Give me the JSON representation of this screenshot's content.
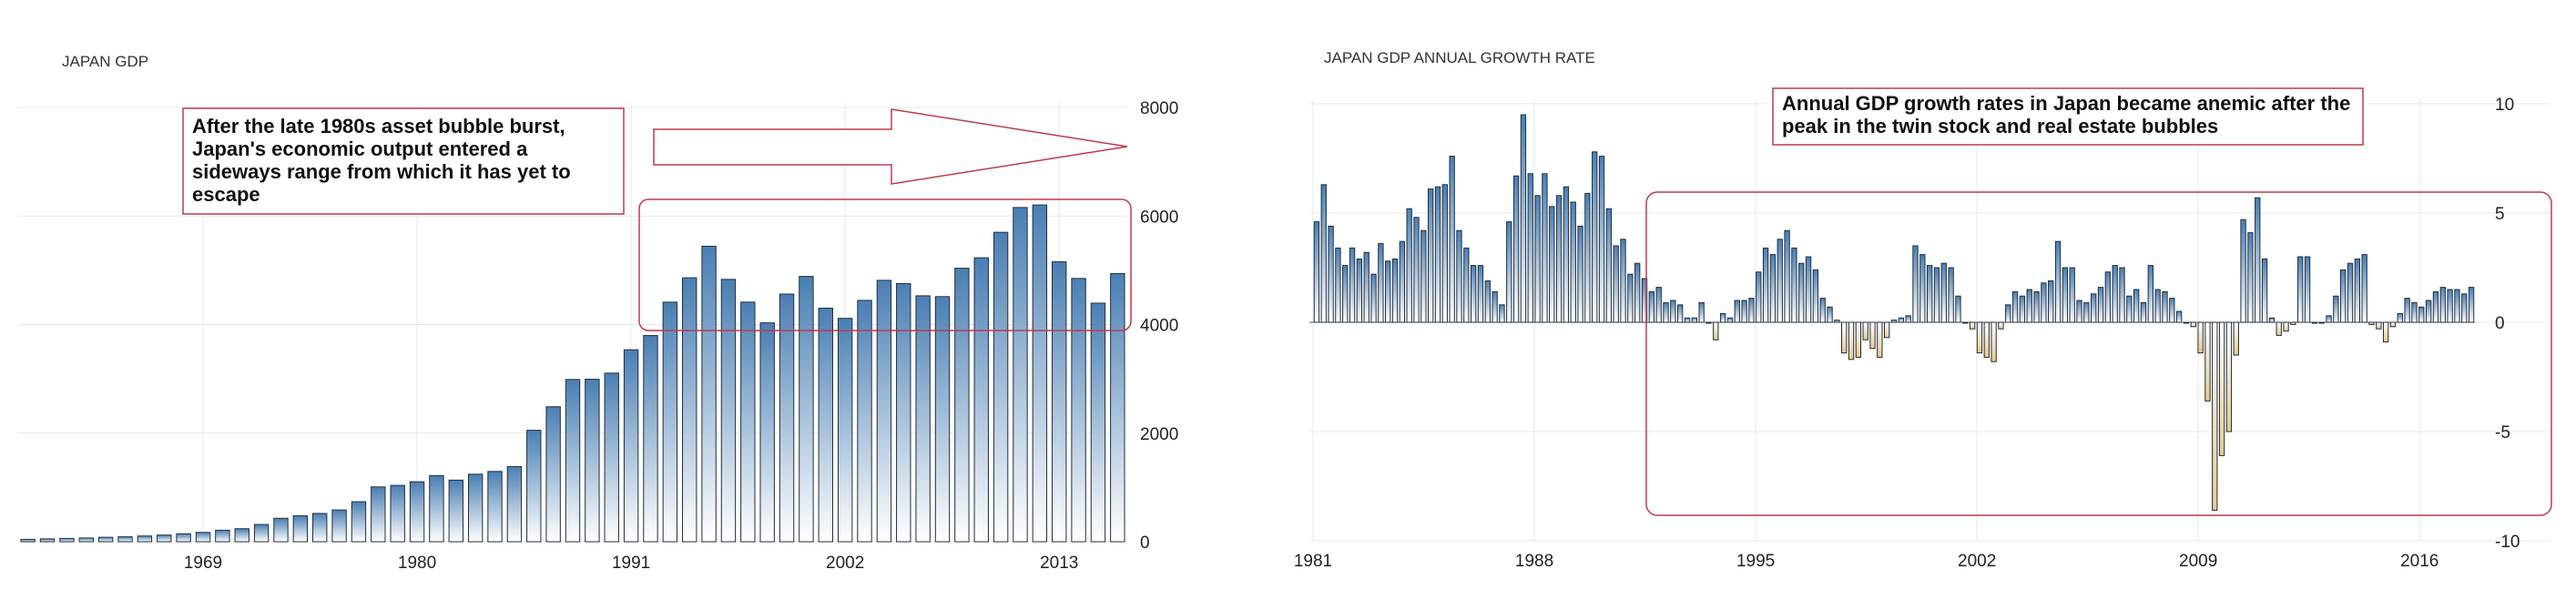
{
  "chart_data": [
    {
      "type": "bar",
      "title": "JAPAN GDP",
      "xlabel": "",
      "ylabel": "",
      "x_ticks": [
        "1969",
        "1980",
        "1991",
        "2002",
        "2013"
      ],
      "y_ticks": [
        "0",
        "2000",
        "4000",
        "6000",
        "8000"
      ],
      "ylim": [
        0,
        8000
      ],
      "y_axis_side": "right",
      "grid": true,
      "categories": [
        1960,
        1961,
        1962,
        1963,
        1964,
        1965,
        1966,
        1967,
        1968,
        1969,
        1970,
        1971,
        1972,
        1973,
        1974,
        1975,
        1976,
        1977,
        1978,
        1979,
        1980,
        1981,
        1982,
        1983,
        1984,
        1985,
        1986,
        1987,
        1988,
        1989,
        1990,
        1991,
        1992,
        1993,
        1994,
        1995,
        1996,
        1997,
        1998,
        1999,
        2000,
        2001,
        2002,
        2003,
        2004,
        2005,
        2006,
        2007,
        2008,
        2009,
        2010,
        2011,
        2012,
        2013,
        2014,
        2015,
        2016
      ],
      "values": [
        44,
        53,
        61,
        69,
        82,
        91,
        106,
        123,
        147,
        172,
        212,
        240,
        318,
        432,
        479,
        521,
        585,
        737,
        1010,
        1038,
        1105,
        1218,
        1135,
        1244,
        1295,
        1384,
        2053,
        2487,
        2989,
        2993,
        3106,
        3536,
        3798,
        4413,
        4862,
        5443,
        4833,
        4414,
        4032,
        4562,
        4887,
        4303,
        4115,
        4446,
        4815,
        4755,
        4530,
        4515,
        5038,
        5231,
        5700,
        6157,
        6203,
        5156,
        4850,
        4395,
        4940
      ],
      "annotation": "After the late 1980s asset bubble burst, Japan's economic output entered a sideways range from which it has yet to escape"
    },
    {
      "type": "bar",
      "title": "JAPAN GDP ANNUAL GROWTH RATE",
      "xlabel": "",
      "ylabel": "",
      "x_ticks": [
        "1981",
        "1988",
        "1995",
        "2002",
        "2009",
        "2016"
      ],
      "y_ticks": [
        "10",
        "5",
        "0",
        "-5",
        "-10"
      ],
      "ylim": [
        -10,
        10
      ],
      "y_axis_side": "right",
      "grid": true,
      "x_start": 1981,
      "x_end": 2017.75,
      "colors": {
        "positive": "#4a7fb3",
        "negative": "#e8c98a"
      },
      "values": [
        4.6,
        6.3,
        4.4,
        3.4,
        2.6,
        3.4,
        2.9,
        3.2,
        2.2,
        3.6,
        2.8,
        2.9,
        3.7,
        5.2,
        4.8,
        4.2,
        6.1,
        6.2,
        6.3,
        7.6,
        4.2,
        3.4,
        2.6,
        2.6,
        1.9,
        1.4,
        0.8,
        4.6,
        6.7,
        9.5,
        6.8,
        5.8,
        6.8,
        5.3,
        5.8,
        6.2,
        5.5,
        4.4,
        5.9,
        7.8,
        7.6,
        5.2,
        3.5,
        3.8,
        2.2,
        2.7,
        2.0,
        1.4,
        1.6,
        0.9,
        1.0,
        0.8,
        0.2,
        0.2,
        0.9,
        0.0,
        -0.8,
        0.4,
        0.2,
        1.0,
        1.0,
        1.1,
        2.3,
        3.4,
        3.1,
        3.8,
        4.2,
        3.4,
        2.7,
        3.0,
        2.4,
        1.1,
        0.7,
        0.1,
        -1.4,
        -1.7,
        -1.6,
        -0.8,
        -1.2,
        -1.6,
        -0.7,
        0.1,
        0.2,
        0.3,
        3.5,
        3.1,
        2.6,
        2.5,
        2.7,
        2.5,
        1.2,
        0.0,
        -0.3,
        -1.4,
        -1.6,
        -1.8,
        -0.3,
        0.8,
        1.4,
        1.2,
        1.5,
        1.4,
        1.8,
        1.9,
        3.7,
        2.5,
        2.5,
        1.0,
        0.9,
        1.3,
        1.6,
        2.3,
        2.6,
        2.5,
        1.2,
        1.5,
        0.9,
        2.6,
        1.5,
        1.4,
        1.1,
        0.5,
        0.0,
        -0.2,
        -1.4,
        -3.6,
        -8.6,
        -6.1,
        -5.0,
        -1.5,
        4.7,
        4.1,
        5.7,
        2.9,
        0.2,
        -0.6,
        -0.4,
        -0.1,
        3.0,
        3.0,
        0.0,
        0.0,
        0.3,
        1.2,
        2.4,
        2.7,
        2.9,
        3.1,
        -0.1,
        -0.3,
        -0.9,
        -0.2,
        0.4,
        1.1,
        0.9,
        0.7,
        1.0,
        1.4,
        1.6,
        1.5,
        1.5,
        1.3,
        1.6
      ],
      "annotation": "Annual GDP growth rates in Japan became anemic after the peak in the twin stock and real estate bubbles"
    }
  ]
}
